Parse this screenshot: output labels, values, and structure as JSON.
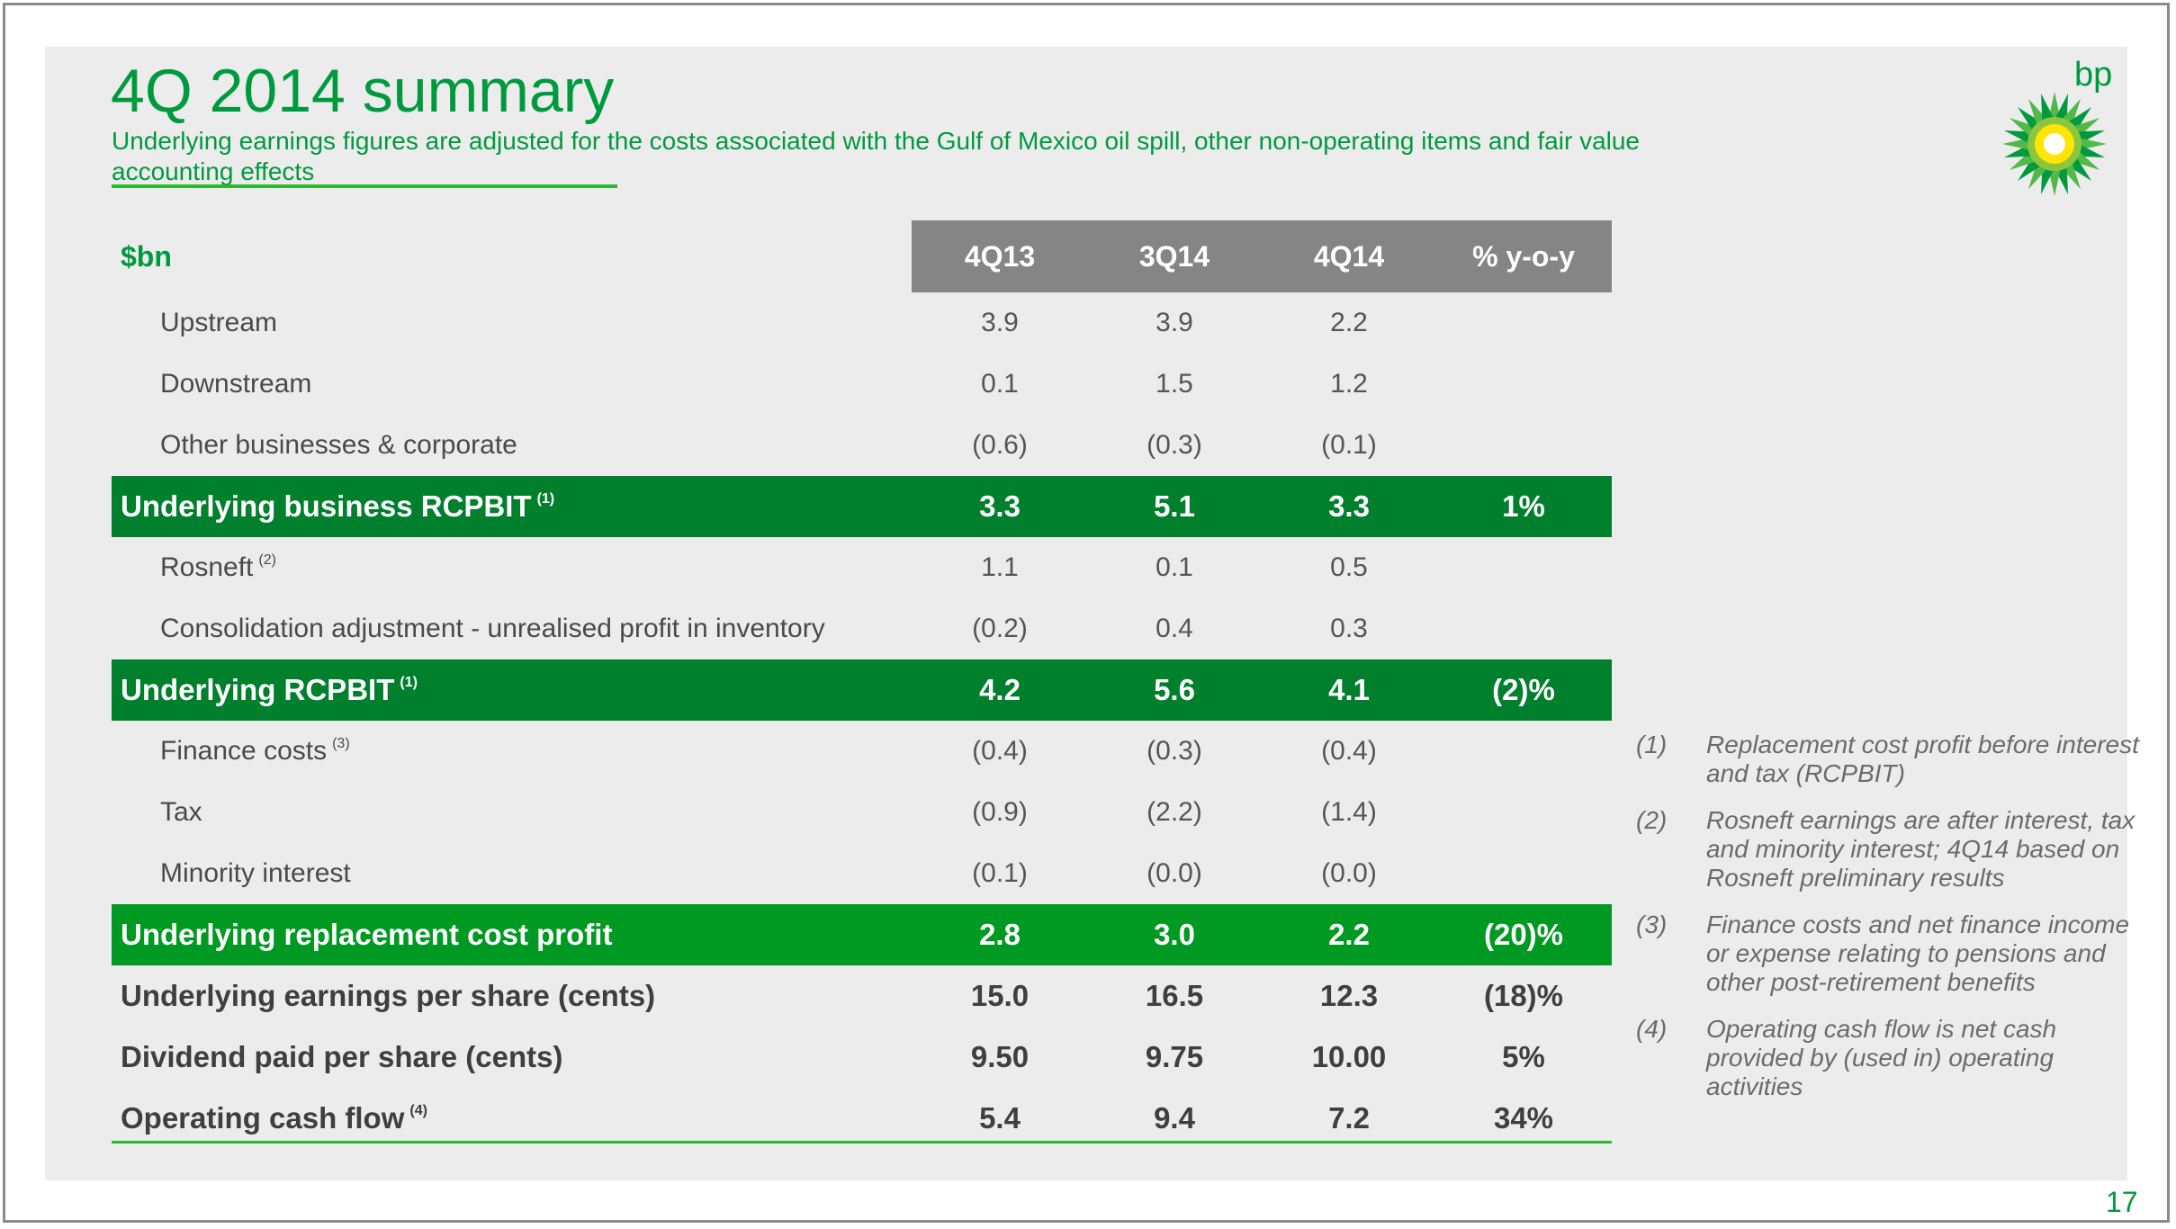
{
  "slide": {
    "title": "4Q 2014 summary",
    "subtitle": "Underlying earnings figures are adjusted for the costs associated with the Gulf of Mexico oil spill, other non-operating items and fair value accounting effects",
    "logo_text": "bp",
    "page_number": "17"
  },
  "colors": {
    "brand_green": "#009a3e",
    "dark_green_row": "#007f2d",
    "bright_green_row": "#009a22",
    "header_gray": "#858585"
  },
  "table": {
    "header": {
      "label": "$bn",
      "cols": [
        "4Q13",
        "3Q14",
        "4Q14",
        "% y-o-y"
      ]
    },
    "rows": [
      {
        "label": "Upstream",
        "note": "",
        "values": [
          "3.9",
          "3.9",
          "2.2",
          ""
        ]
      },
      {
        "label": "Downstream",
        "note": "",
        "values": [
          "0.1",
          "1.5",
          "1.2",
          ""
        ]
      },
      {
        "label": "Other businesses & corporate",
        "note": "",
        "values": [
          "(0.6)",
          "(0.3)",
          "(0.1)",
          ""
        ]
      },
      {
        "label": "Underlying business RCPBIT",
        "note": "(1)",
        "values": [
          "3.3",
          "5.1",
          "3.3",
          "1%"
        ]
      },
      {
        "label": "Rosneft",
        "note": "(2)",
        "values": [
          "1.1",
          "0.1",
          "0.5",
          ""
        ]
      },
      {
        "label": "Consolidation adjustment - unrealised profit in inventory",
        "note": "",
        "values": [
          "(0.2)",
          "0.4",
          "0.3",
          ""
        ]
      },
      {
        "label": "Underlying RCPBIT",
        "note": "(1)",
        "values": [
          "4.2",
          "5.6",
          "4.1",
          "(2)%"
        ]
      },
      {
        "label": "Finance costs",
        "note": "(3)",
        "values": [
          "(0.4)",
          "(0.3)",
          "(0.4)",
          ""
        ]
      },
      {
        "label": "Tax",
        "note": "",
        "values": [
          "(0.9)",
          "(2.2)",
          "(1.4)",
          ""
        ]
      },
      {
        "label": "Minority interest",
        "note": "",
        "values": [
          "(0.1)",
          "(0.0)",
          "(0.0)",
          ""
        ]
      },
      {
        "label": "Underlying replacement cost profit",
        "note": "",
        "values": [
          "2.8",
          "3.0",
          "2.2",
          "(20)%"
        ]
      },
      {
        "label": "Underlying earnings per share (cents)",
        "note": "",
        "values": [
          "15.0",
          "16.5",
          "12.3",
          "(18)%"
        ]
      },
      {
        "label": "Dividend paid per share (cents)",
        "note": "",
        "values": [
          "9.50",
          "9.75",
          "10.00",
          "5%"
        ]
      },
      {
        "label": "Operating cash flow",
        "note": "(4)",
        "values": [
          "5.4",
          "9.4",
          "7.2",
          "34%"
        ]
      }
    ]
  },
  "footnotes": [
    {
      "num": "(1)",
      "text": "Replacement cost profit before interest and tax (RCPBIT)"
    },
    {
      "num": "(2)",
      "text": "Rosneft earnings are after interest, tax and minority interest; 4Q14 based on Rosneft preliminary results"
    },
    {
      "num": "(3)",
      "text": "Finance costs and net finance income or expense relating to pensions and other post-retirement benefits"
    },
    {
      "num": "(4)",
      "text": "Operating cash flow is net cash provided by (used in) operating activities"
    }
  ]
}
